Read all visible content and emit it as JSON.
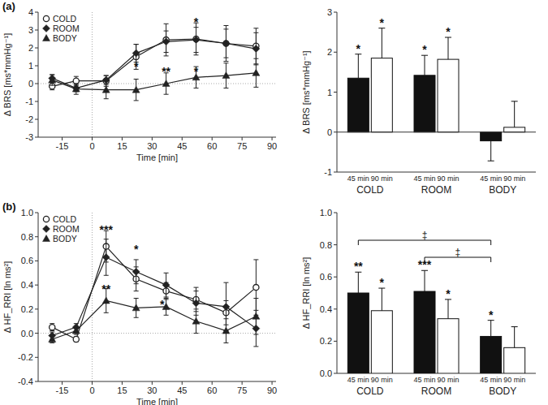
{
  "chart_data": [
    {
      "type": "line",
      "title": "(a)",
      "xlabel": "Time [min]",
      "ylabel": "Δ BRS [ms*mmHg⁻¹]",
      "x": [
        -20,
        -8,
        7,
        22,
        37,
        52,
        67,
        82
      ],
      "series": [
        {
          "name": "COLD",
          "color": "#222222",
          "marker": "circle-open",
          "values": [
            -0.15,
            0.15,
            0.15,
            1.5,
            2.45,
            2.5,
            2.25,
            2.1
          ],
          "errors": [
            0.2,
            0.25,
            0.3,
            0.7,
            0.9,
            0.9,
            1.0,
            1.0
          ]
        },
        {
          "name": "ROOM",
          "color": "#222222",
          "marker": "diamond",
          "values": [
            0.3,
            -0.25,
            0.2,
            1.7,
            2.35,
            2.45,
            2.25,
            1.95
          ],
          "errors": [
            0.2,
            0.2,
            0.25,
            0.5,
            0.6,
            0.7,
            0.8,
            0.9
          ]
        },
        {
          "name": "BODY",
          "color": "#222222",
          "marker": "triangle",
          "values": [
            0.2,
            -0.3,
            -0.35,
            -0.35,
            0.0,
            0.35,
            0.45,
            0.6
          ],
          "errors": [
            0.3,
            0.3,
            0.5,
            0.6,
            0.6,
            0.6,
            0.7,
            0.8
          ]
        }
      ],
      "xlim": [
        -27,
        92
      ],
      "xticks": [
        -15,
        0,
        15,
        30,
        45,
        60,
        75,
        90
      ],
      "ylim": [
        -3,
        4
      ],
      "yticks": [
        -3,
        -2,
        -1,
        0,
        1,
        2,
        3,
        4
      ],
      "legend": "upper left",
      "annotations": [
        {
          "text": "*",
          "x": 52,
          "y": 3.45
        },
        {
          "text": "*",
          "x": 22,
          "y": 0.95
        },
        {
          "text": "**",
          "x": 37,
          "y": 0.7
        },
        {
          "text": "*",
          "x": 52,
          "y": 0.7
        }
      ]
    },
    {
      "type": "bar",
      "ylabel": "Δ BRS [ms*mmHg⁻¹]",
      "categories": [
        "COLD",
        "ROOM",
        "BODY"
      ],
      "series": [
        {
          "name": "45 min",
          "color": "#111111",
          "values": [
            1.35,
            1.42,
            -0.22
          ],
          "errors": [
            0.6,
            0.5,
            0.5
          ],
          "significance": [
            "*",
            "*",
            null
          ]
        },
        {
          "name": "90 min",
          "color": "#ffffff",
          "values": [
            1.85,
            1.82,
            0.12
          ],
          "errors": [
            0.75,
            0.55,
            0.65
          ],
          "significance": [
            "*",
            "*",
            null
          ]
        }
      ],
      "ylim": [
        -1,
        3
      ],
      "yticks": [
        -1,
        0,
        1,
        2,
        3
      ]
    },
    {
      "type": "line",
      "title": "(b)",
      "xlabel": "Time [min]",
      "ylabel": "Δ HF_RRI [ln ms²]",
      "x": [
        -20,
        -8,
        7,
        22,
        37,
        52,
        67,
        82
      ],
      "series": [
        {
          "name": "COLD",
          "color": "#222222",
          "marker": "circle-open",
          "values": [
            0.05,
            -0.05,
            0.72,
            0.45,
            0.35,
            0.28,
            0.17,
            0.38
          ],
          "errors": [
            0.03,
            0.02,
            0.13,
            0.1,
            0.07,
            0.1,
            0.1,
            0.23
          ]
        },
        {
          "name": "ROOM",
          "color": "#222222",
          "marker": "diamond",
          "values": [
            -0.02,
            0.05,
            0.63,
            0.51,
            0.4,
            0.25,
            0.22,
            0.04
          ],
          "errors": [
            0.03,
            0.03,
            0.15,
            0.1,
            0.1,
            0.1,
            0.2,
            0.15
          ]
        },
        {
          "name": "BODY",
          "color": "#222222",
          "marker": "triangle",
          "values": [
            -0.05,
            0.02,
            0.27,
            0.21,
            0.22,
            0.1,
            0.02,
            0.14
          ],
          "errors": [
            0.03,
            0.03,
            0.1,
            0.08,
            0.07,
            0.1,
            0.1,
            0.15
          ]
        }
      ],
      "xlim": [
        -27,
        92
      ],
      "xticks": [
        -15,
        0,
        15,
        30,
        45,
        60,
        75,
        90
      ],
      "ylim": [
        -0.4,
        1.0
      ],
      "yticks": [
        -0.4,
        -0.2,
        {
          "value": 0,
          "label": "0.0"
        },
        0.2,
        0.4,
        0.6,
        0.8,
        {
          "value": 1,
          "label": "1.0"
        }
      ],
      "legend": "upper left",
      "annotations": [
        {
          "text": "***",
          "x": 7,
          "y": 0.86
        },
        {
          "text": "*",
          "x": 22,
          "y": 0.7
        },
        {
          "text": "**",
          "x": 7,
          "y": 0.37
        },
        {
          "text": "*",
          "x": 35,
          "y": 0.24
        }
      ]
    },
    {
      "type": "bar",
      "ylabel": "Δ HF_RRI [ln ms²]",
      "categories": [
        "COLD",
        "ROOM",
        "BODY"
      ],
      "series": [
        {
          "name": "45 min",
          "color": "#111111",
          "values": [
            0.5,
            0.51,
            0.23
          ],
          "errors": [
            0.13,
            0.13,
            0.1
          ],
          "significance": [
            "**",
            "***",
            "*"
          ]
        },
        {
          "name": "90 min",
          "color": "#ffffff",
          "values": [
            0.39,
            0.34,
            0.16
          ],
          "errors": [
            0.14,
            0.12,
            0.13
          ],
          "significance": [
            "*",
            "*",
            null
          ]
        }
      ],
      "ylim": [
        0,
        1
      ],
      "yticks": [
        {
          "value": 0,
          "label": "0.0"
        },
        0.2,
        0.4,
        0.6,
        0.8,
        {
          "value": 1,
          "label": "1.0"
        }
      ],
      "brackets": [
        {
          "from": "COLD",
          "to": "BODY",
          "series": "45 min",
          "label": "‡"
        },
        {
          "from": "ROOM",
          "to": "BODY",
          "series": "45 min",
          "label": "‡"
        }
      ]
    }
  ]
}
